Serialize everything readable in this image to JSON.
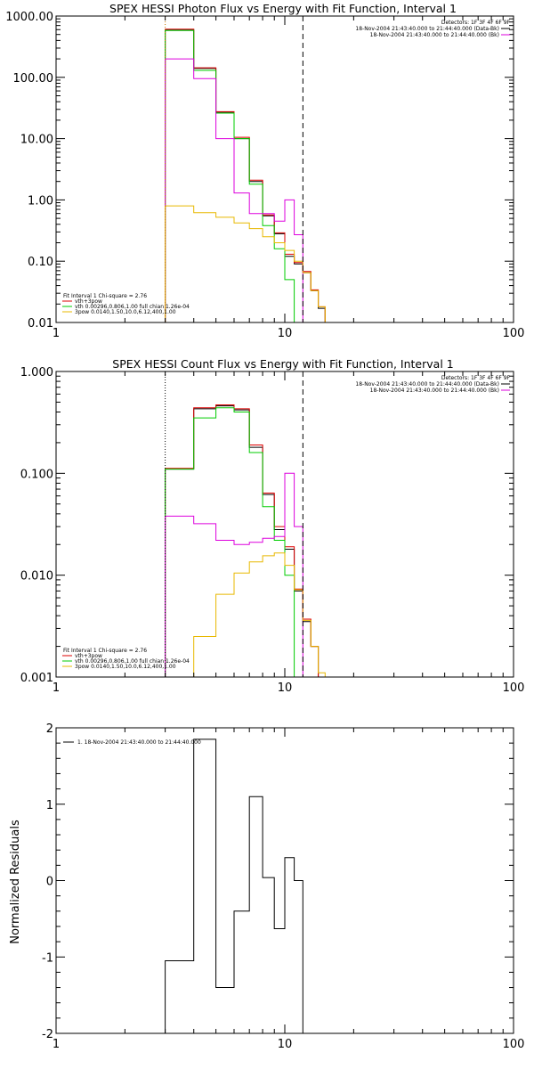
{
  "chart_data": [
    {
      "type": "line",
      "title": "SPEX HESSI Photon Flux vs Energy with Fit Function, Interval 1",
      "xlabel": "",
      "ylabel": "",
      "xscale": "log",
      "yscale": "log",
      "xlim": [
        1,
        100
      ],
      "ylim": [
        0.01,
        1000
      ],
      "x_tick_labels": [
        "1",
        "10",
        "100"
      ],
      "y_ticks": [
        0.01,
        0.1,
        1,
        10,
        100,
        1000
      ],
      "y_tick_labels": [
        "0.01",
        "0.10",
        "1.00",
        "10.00",
        "100.00",
        "1000.00"
      ],
      "vlines": [
        {
          "x": 3.0,
          "style": "dotted",
          "color": "#c87800"
        },
        {
          "x": 12.0,
          "style": "dashed",
          "color": "#000000"
        }
      ],
      "info_lines": [
        {
          "text": "Detectors: 1F 3F 4F 6F 9F",
          "swatch": ""
        },
        {
          "text": "18-Nov-2004 21:43:40.000 to 21:44:40.000 (Data-Bk)",
          "swatch": "#000000"
        },
        {
          "text": "18-Nov-2004 21:43:40.000 to 21:44:40.000 (Bk)",
          "swatch": "#dd00dd"
        }
      ],
      "legend_lines": [
        {
          "text": "Fit Interval 1    Chi-square = 2.76",
          "swatch": ""
        },
        {
          "text": "vth+3pow",
          "swatch": "#dd0000"
        },
        {
          "text": "vth 0.00296,0.806,1.00   full chian 1.26e-04",
          "swatch": "#00cc00"
        },
        {
          "text": "3pow 0.0140,1.50,10.0,6.12,400,1.00",
          "swatch": "#e8b800"
        }
      ],
      "series": [
        {
          "color": "#000000",
          "edges": [
            3,
            4,
            5,
            6,
            7,
            8,
            9,
            10,
            11,
            12,
            13,
            14,
            15
          ],
          "values": [
            600,
            140,
            27,
            10,
            2.0,
            0.55,
            0.28,
            0.12,
            0.09,
            0.065,
            0.033,
            0.017
          ]
        },
        {
          "color": "#dd0000",
          "edges": [
            3,
            4,
            5,
            6,
            7,
            8,
            9,
            10,
            11,
            12,
            13,
            14,
            15
          ],
          "values": [
            610,
            143,
            27.5,
            10.5,
            2.1,
            0.57,
            0.29,
            0.13,
            0.095,
            0.068,
            0.034,
            0.018
          ]
        },
        {
          "color": "#00cc00",
          "edges": [
            3,
            4,
            5,
            6,
            7,
            8,
            9,
            10,
            11
          ],
          "values": [
            580,
            130,
            26,
            10,
            1.8,
            0.38,
            0.16,
            0.05,
            0.01
          ]
        },
        {
          "color": "#dd00dd",
          "edges": [
            3,
            4,
            5,
            6,
            7,
            8,
            9,
            10,
            11,
            12
          ],
          "values": [
            200,
            95,
            10,
            1.3,
            0.6,
            0.6,
            0.45,
            1.0,
            0.27,
            0.01
          ]
        },
        {
          "color": "#e8b800",
          "edges": [
            3,
            4,
            5,
            6,
            7,
            8,
            9,
            10,
            11,
            12,
            13,
            14,
            15
          ],
          "values": [
            0.8,
            0.62,
            0.52,
            0.42,
            0.34,
            0.25,
            0.2,
            0.15,
            0.1,
            0.065,
            0.033,
            0.018
          ]
        }
      ]
    },
    {
      "type": "line",
      "title": "SPEX HESSI Count Flux vs Energy with Fit Function, Interval 1",
      "xlabel": "",
      "ylabel": "",
      "xscale": "log",
      "yscale": "log",
      "xlim": [
        1,
        100
      ],
      "ylim": [
        0.001,
        1
      ],
      "x_tick_labels": [
        "1",
        "10",
        "100"
      ],
      "y_ticks": [
        0.001,
        0.01,
        0.1,
        1
      ],
      "y_tick_labels": [
        "0.001",
        "0.010",
        "0.100",
        "1.000"
      ],
      "vlines": [
        {
          "x": 3.0,
          "style": "dotted",
          "color": "#000000"
        },
        {
          "x": 12.0,
          "style": "dashed",
          "color": "#000000"
        }
      ],
      "info_lines": [
        {
          "text": "Detectors: 1F 3F 4F 6F 9F",
          "swatch": ""
        },
        {
          "text": "18-Nov-2004 21:43:40.000 to 21:44:40.000 (Data-Bk)",
          "swatch": "#000000"
        },
        {
          "text": "18-Nov-2004 21:43:40.000 to 21:44:40.000 (Bk)",
          "swatch": "#dd00dd"
        }
      ],
      "legend_lines": [
        {
          "text": "Fit Interval 1    Chi-square = 2.76",
          "swatch": ""
        },
        {
          "text": "vth+3pow",
          "swatch": "#dd0000"
        },
        {
          "text": "vth 0.00296,0.806,1.00   full chian 1.26e-04",
          "swatch": "#00cc00"
        },
        {
          "text": "3pow 0.0140,1.50,10.0,6.12,400,1.00",
          "swatch": "#e8b800"
        }
      ],
      "series": [
        {
          "color": "#000000",
          "edges": [
            3,
            4,
            5,
            6,
            7,
            8,
            9,
            10,
            11,
            12,
            13,
            14,
            15
          ],
          "values": [
            0.11,
            0.43,
            0.46,
            0.42,
            0.18,
            0.062,
            0.028,
            0.018,
            0.007,
            0.0035,
            0.002,
            0.001
          ]
        },
        {
          "color": "#dd0000",
          "edges": [
            3,
            4,
            5,
            6,
            7,
            8,
            9,
            10,
            11,
            12,
            13,
            14,
            15
          ],
          "values": [
            0.112,
            0.44,
            0.47,
            0.43,
            0.19,
            0.064,
            0.03,
            0.019,
            0.0073,
            0.0037,
            0.002,
            0.001
          ]
        },
        {
          "color": "#00cc00",
          "edges": [
            3,
            4,
            5,
            6,
            7,
            8,
            9,
            10,
            11
          ],
          "values": [
            0.11,
            0.35,
            0.44,
            0.4,
            0.16,
            0.047,
            0.022,
            0.01,
            0.001
          ]
        },
        {
          "color": "#dd00dd",
          "edges": [
            3,
            4,
            5,
            6,
            7,
            8,
            9,
            10,
            11,
            12
          ],
          "values": [
            0.038,
            0.032,
            0.022,
            0.02,
            0.021,
            0.023,
            0.024,
            0.1,
            0.03,
            0.001
          ]
        },
        {
          "color": "#e8b800",
          "edges": [
            4,
            5,
            6,
            7,
            8,
            9,
            10,
            11,
            12,
            13,
            14,
            15,
            16
          ],
          "values": [
            0.0025,
            0.0065,
            0.0105,
            0.0135,
            0.0155,
            0.0165,
            0.0125,
            0.0072,
            0.0036,
            0.002,
            0.0011,
            0.001
          ]
        }
      ]
    },
    {
      "type": "line",
      "title": "",
      "xlabel": "",
      "ylabel": "Normalized Residuals",
      "xscale": "log",
      "yscale": "linear",
      "xlim": [
        1,
        100
      ],
      "ylim": [
        -2,
        2
      ],
      "x_tick_labels": [
        "1",
        "10",
        "100"
      ],
      "y_ticks": [
        -2,
        -1,
        0,
        1,
        2
      ],
      "y_tick_labels": [
        "-2",
        "-1",
        "0",
        "1",
        "2"
      ],
      "vlines": [],
      "info_lines": [],
      "legend_lines": [
        {
          "text": "1. 18-Nov-2004 21:43:40.000 to 21:44:40.000",
          "swatch": "#000000"
        }
      ],
      "series": [
        {
          "color": "#000000",
          "edges": [
            3,
            4,
            5,
            6,
            7,
            8,
            9,
            10,
            11,
            12
          ],
          "values": [
            -1.05,
            1.85,
            -1.4,
            -0.4,
            1.1,
            0.04,
            -0.63,
            0.3,
            0.0
          ]
        }
      ]
    }
  ]
}
